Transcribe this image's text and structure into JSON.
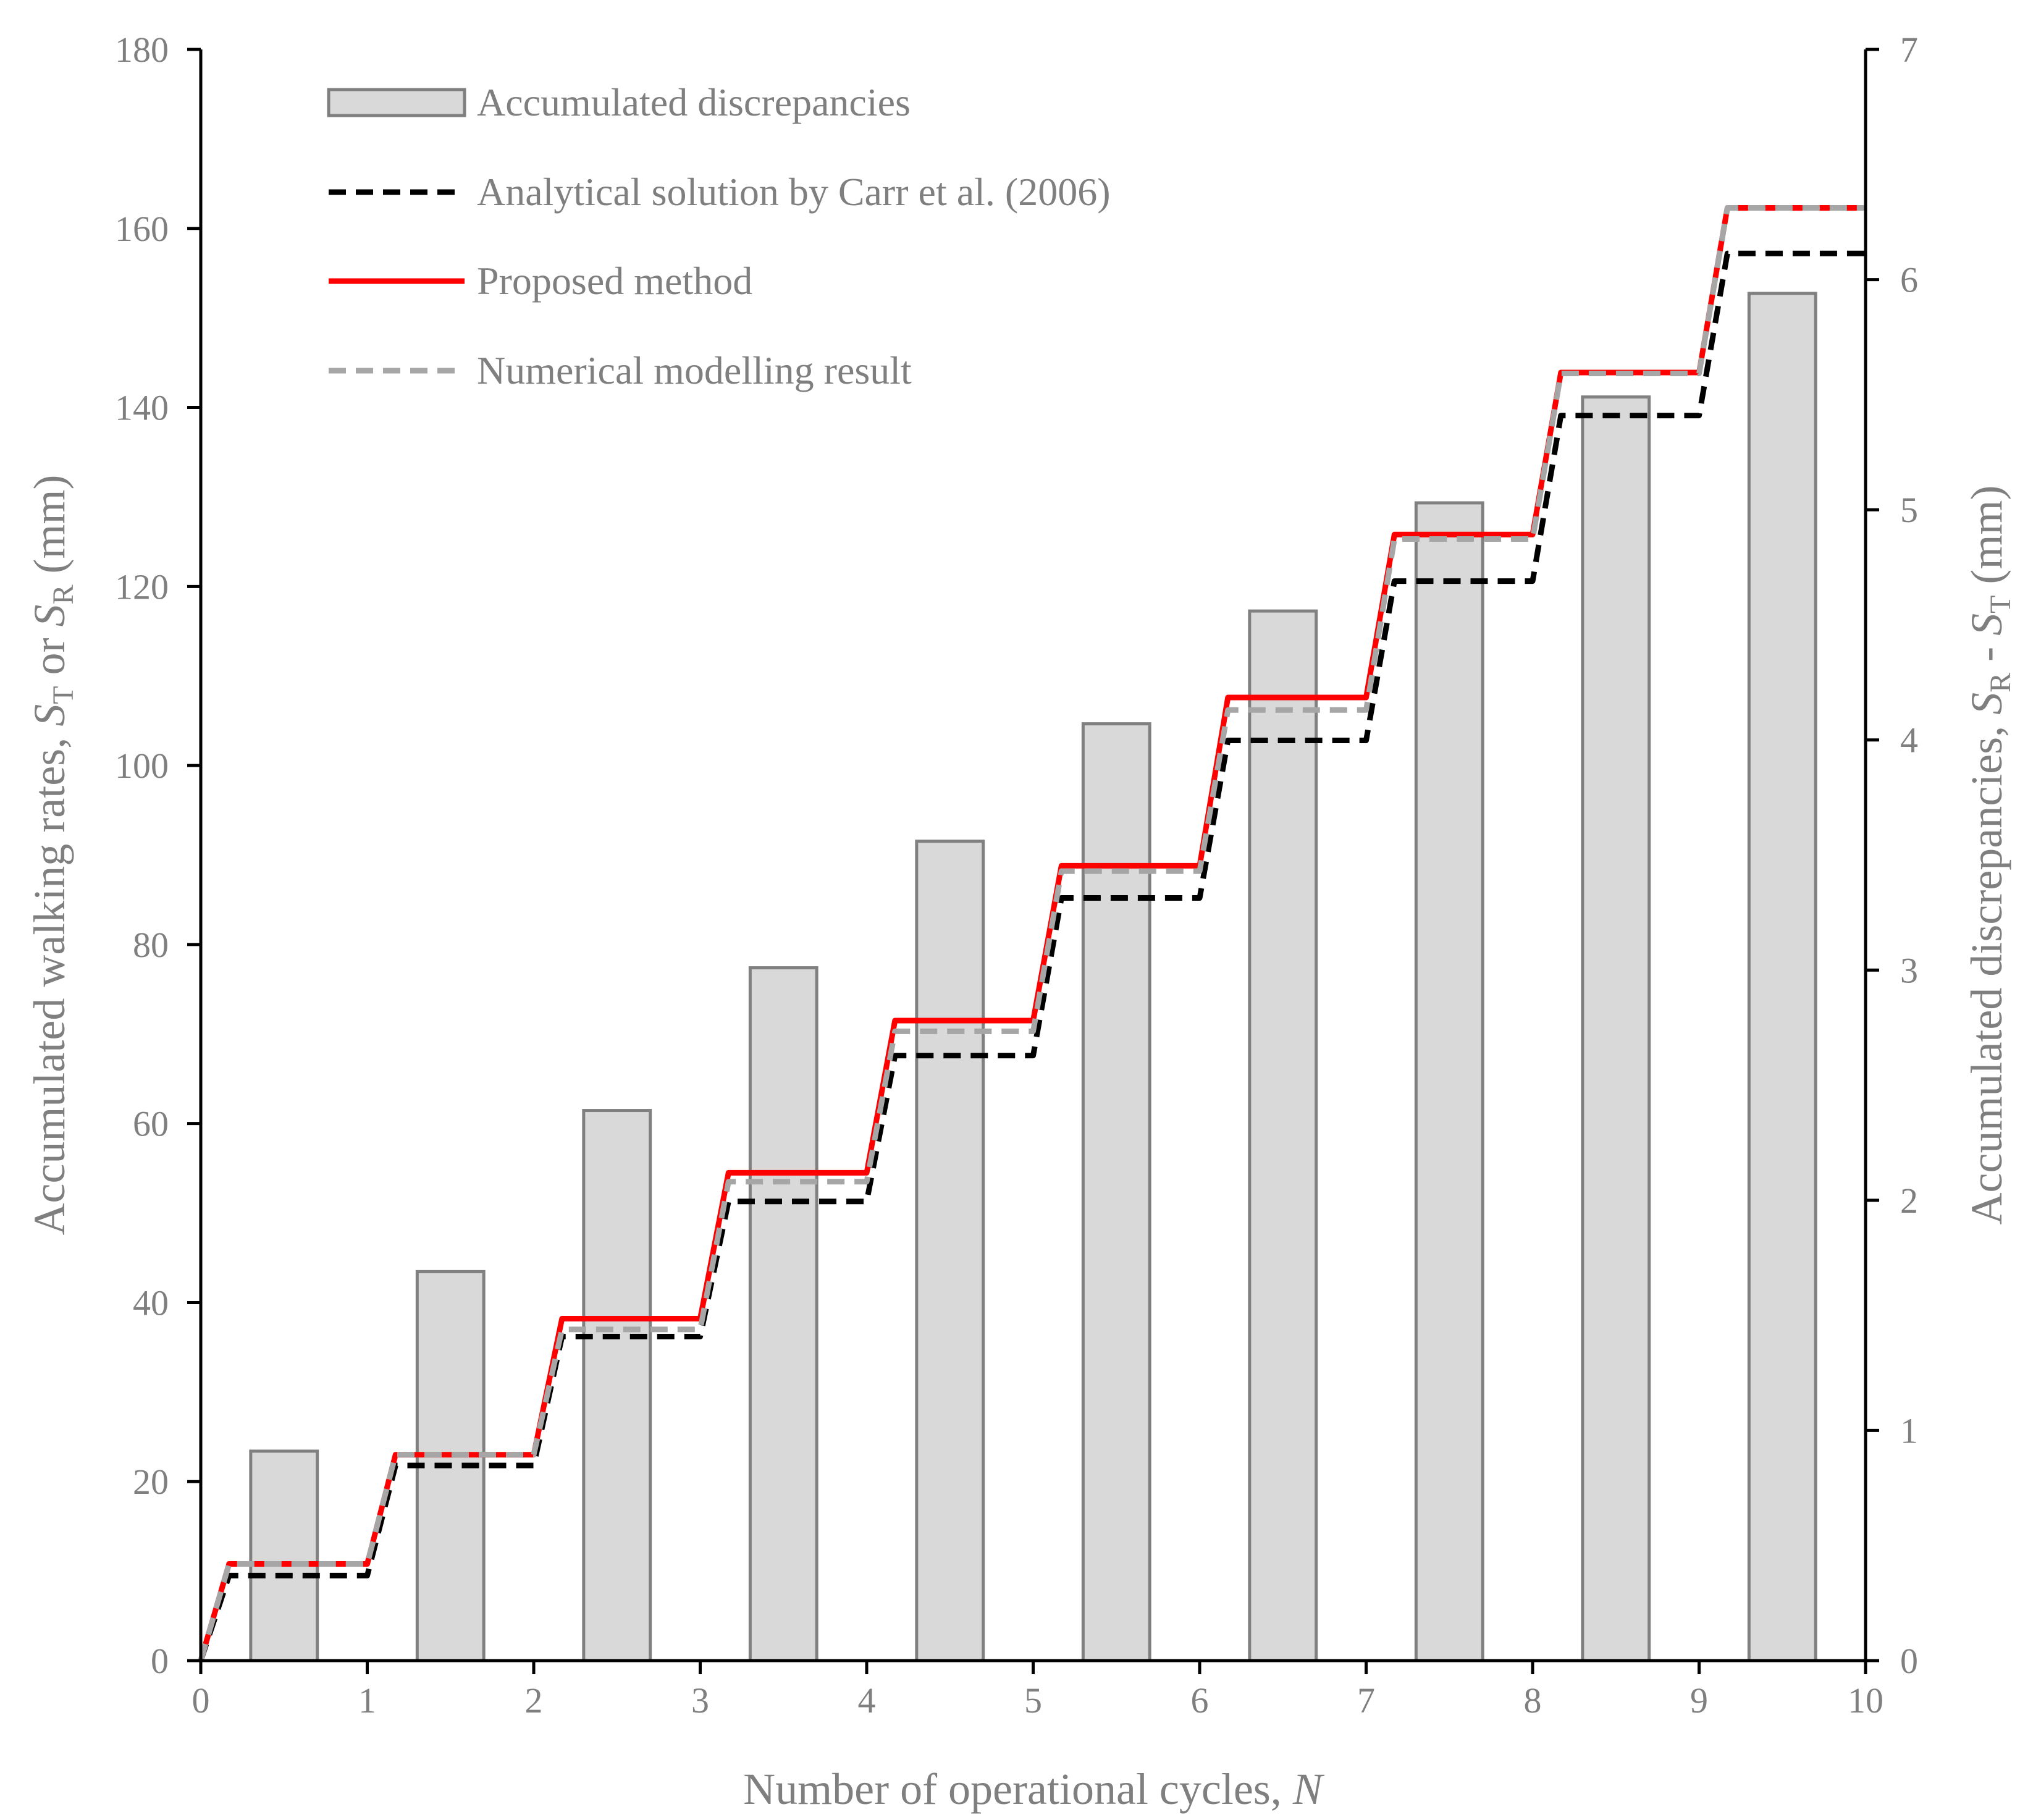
{
  "chart_data": {
    "type": "bar+line",
    "xlabel": "Number of operational cycles, N",
    "ylabel_left": "Accumulated walking rates, ST or SR (mm)",
    "ylabel_right": "Accumulated discrepancies, SR - ST (mm)",
    "xlim": [
      0,
      10
    ],
    "ylim_left": [
      0,
      180
    ],
    "ylim_right": [
      0,
      7
    ],
    "x_ticks": [
      "0",
      "1",
      "2",
      "3",
      "4",
      "5",
      "6",
      "7",
      "8",
      "9",
      "10"
    ],
    "y_left_ticks": [
      "0",
      "20",
      "40",
      "60",
      "80",
      "100",
      "120",
      "140",
      "160",
      "180"
    ],
    "y_right_ticks": [
      "0",
      "1",
      "2",
      "3",
      "4",
      "5",
      "6",
      "7"
    ],
    "bars": {
      "name": "Accumulated discrepancies",
      "axis": "right",
      "categories": [
        0.5,
        1.5,
        2.5,
        3.5,
        4.5,
        5.5,
        6.5,
        7.5,
        8.5,
        9.5
      ],
      "values": [
        0.91,
        1.69,
        2.39,
        3.01,
        3.56,
        4.07,
        4.56,
        5.03,
        5.49,
        5.94
      ],
      "color": "#d9d9d9",
      "edge": "#808080"
    },
    "steps": {
      "x_start": [
        0,
        1,
        2,
        3,
        4,
        5,
        6,
        7,
        8,
        9
      ],
      "rise_width": 0.17
    },
    "series": [
      {
        "name": "Analytical solution by Carr et al. (2006)",
        "axis": "left",
        "style": "dashed",
        "color": "#000000",
        "levels": [
          9.5,
          21.8,
          36.2,
          51.3,
          67.6,
          85.2,
          102.8,
          120.6,
          139.1,
          157.2
        ]
      },
      {
        "name": "Proposed method",
        "axis": "left",
        "style": "solid",
        "color": "#ff0000",
        "levels": [
          10.8,
          23.0,
          38.2,
          54.5,
          71.5,
          88.8,
          107.6,
          125.8,
          143.9,
          162.3
        ]
      },
      {
        "name": "Numerical modelling result",
        "axis": "left",
        "style": "dashed",
        "color": "#a6a6a6",
        "levels": [
          10.8,
          23.0,
          37.0,
          53.5,
          70.3,
          88.2,
          106.2,
          125.3,
          143.8,
          162.3
        ]
      }
    ],
    "legend": {
      "position": "top-left",
      "entries": [
        "Accumulated discrepancies",
        "Analytical solution by Carr et al. (2006)",
        "Proposed method",
        "Numerical modelling result"
      ]
    },
    "grid": false
  }
}
